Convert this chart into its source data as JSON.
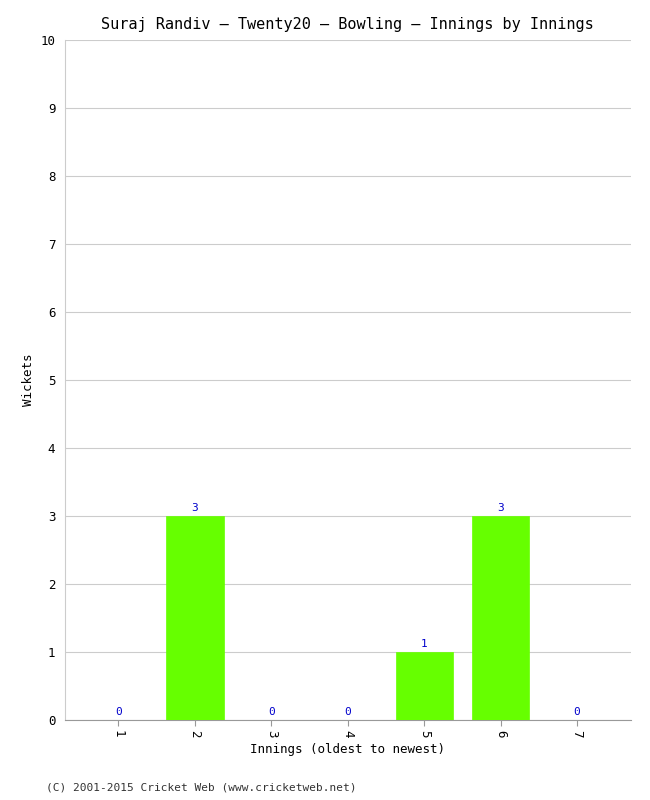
{
  "title": "Suraj Randiv – Twenty20 – Bowling – Innings by Innings",
  "xlabel": "Innings (oldest to newest)",
  "ylabel": "Wickets",
  "categories": [
    "1",
    "2",
    "3",
    "4",
    "5",
    "6",
    "7"
  ],
  "values": [
    0,
    3,
    0,
    0,
    1,
    3,
    0
  ],
  "bar_color": "#66ff00",
  "bar_edge_color": "#66ff00",
  "ylim": [
    0,
    10
  ],
  "yticks": [
    0,
    1,
    2,
    3,
    4,
    5,
    6,
    7,
    8,
    9,
    10
  ],
  "background_color": "#ffffff",
  "grid_color": "#cccccc",
  "label_color": "#0000cc",
  "footer": "(C) 2001-2015 Cricket Web (www.cricketweb.net)",
  "title_fontsize": 11,
  "axis_label_fontsize": 9,
  "tick_fontsize": 9,
  "bar_label_fontsize": 8,
  "footer_fontsize": 8,
  "bar_width": 0.75
}
